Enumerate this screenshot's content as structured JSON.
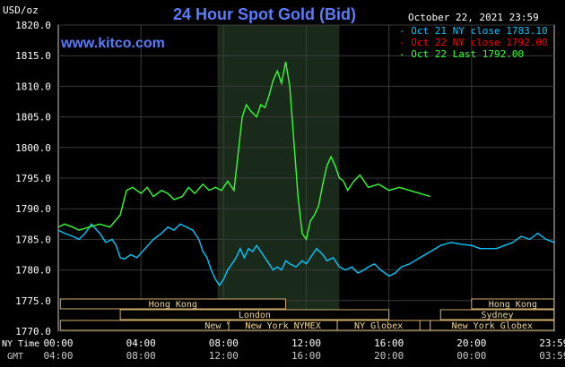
{
  "chart_data": {
    "type": "line",
    "title": "24 Hour Spot Gold (Bid)",
    "website": "www.kitco.com",
    "ylabel": "USD/oz",
    "datetime": "October 22, 2021 23:59",
    "ylim": [
      1770,
      1820
    ],
    "yticks": [
      "1770.0",
      "1775.0",
      "1780.0",
      "1785.0",
      "1790.0",
      "1795.0",
      "1800.0",
      "1805.0",
      "1810.0",
      "1815.0",
      "1820.0"
    ],
    "grid": true,
    "legend_position": "top-right",
    "legend": [
      {
        "label": "- Oct 21 NY close 1783.10",
        "color": "#00c8ff"
      },
      {
        "label": "- Oct 22 NY close 1792.00",
        "color": "#ff0000"
      },
      {
        "label": "- Oct 22 Last 1792.00",
        "color": "#33ff33"
      }
    ],
    "xaxis": {
      "ny_label": "NY Time",
      "gmt_label": "GMT",
      "ny_ticks": [
        "00:00",
        "04:00",
        "08:00",
        "12:00",
        "16:00",
        "20:00",
        "23:59"
      ],
      "gmt_ticks": [
        "04:00",
        "08:00",
        "12:00",
        "16:00",
        "20:00",
        "00:00",
        "03:59"
      ]
    },
    "sessions": [
      {
        "label": "Hong Kong",
        "start": 0.1,
        "end": 11.0
      },
      {
        "label": "London",
        "start": 3.0,
        "end": 16.0
      },
      {
        "label": "New York Globex",
        "start": 0.1,
        "end": 18.0
      },
      {
        "label": "New York NYMEX",
        "start": 8.25,
        "end": 13.5
      },
      {
        "label": "NY Globex",
        "start": 13.5,
        "end": 17.5
      },
      {
        "label": "Hong Kong",
        "start": 20.0,
        "end": 23.99
      },
      {
        "label": "Sydney",
        "start": 18.5,
        "end": 23.99
      },
      {
        "label": "New York Globex",
        "start": 18.0,
        "end": 23.99
      }
    ],
    "highlight_hours": [
      7.7,
      13.6
    ],
    "series": [
      {
        "name": "Oct 21 NY close 1783.10",
        "color": "#00c8ff",
        "x": [
          0,
          0.3,
          0.7,
          1.0,
          1.3,
          1.6,
          2.0,
          2.3,
          2.6,
          2.8,
          3.0,
          3.2,
          3.5,
          3.8,
          4.2,
          4.6,
          5.0,
          5.3,
          5.6,
          5.9,
          6.2,
          6.5,
          6.8,
          7.0,
          7.2,
          7.4,
          7.6,
          7.8,
          8.0,
          8.2,
          8.4,
          8.6,
          8.8,
          9.0,
          9.2,
          9.4,
          9.6,
          9.8,
          10.0,
          10.2,
          10.4,
          10.6,
          10.8,
          11.0,
          11.2,
          11.5,
          11.8,
          12.0,
          12.2,
          12.5,
          12.8,
          13.0,
          13.3,
          13.6,
          13.9,
          14.2,
          14.5,
          14.8,
          15.0,
          15.3,
          15.6,
          16.0,
          16.3,
          16.6,
          17.0,
          17.5,
          18.0,
          18.5,
          19.0,
          19.5,
          20.0,
          20.4,
          20.8,
          21.2,
          21.6,
          22.0,
          22.4,
          22.8,
          23.2,
          23.6,
          23.99
        ],
        "y": [
          1786.5,
          1786,
          1785.5,
          1785,
          1786,
          1787.5,
          1786,
          1784.5,
          1785,
          1784,
          1782,
          1781.8,
          1782.5,
          1782,
          1783.5,
          1785,
          1786,
          1787,
          1786.5,
          1787.5,
          1787,
          1786.5,
          1785,
          1783,
          1782,
          1780,
          1778.5,
          1777.5,
          1778.5,
          1780,
          1781,
          1782,
          1783.5,
          1782,
          1783.5,
          1783,
          1784,
          1783,
          1782,
          1781,
          1780,
          1780.5,
          1780,
          1781.5,
          1781,
          1780.5,
          1781.5,
          1781,
          1782,
          1783.5,
          1782.5,
          1781.5,
          1782,
          1780.5,
          1780,
          1780.5,
          1779.5,
          1780,
          1780.5,
          1781,
          1780,
          1779,
          1779.5,
          1780.5,
          1781,
          1782,
          1783,
          1784,
          1784.5,
          1784.2,
          1784,
          1783.5,
          1783.5,
          1783.5,
          1784,
          1784.5,
          1785.5,
          1785,
          1786,
          1785,
          1784.5
        ]
      },
      {
        "name": "Oct 22 Last 1792.00",
        "color": "#33ff33",
        "x": [
          0,
          0.3,
          0.7,
          1.0,
          1.5,
          2.0,
          2.5,
          3.0,
          3.3,
          3.6,
          4.0,
          4.3,
          4.6,
          5.0,
          5.3,
          5.6,
          6.0,
          6.3,
          6.6,
          7.0,
          7.3,
          7.6,
          7.9,
          8.2,
          8.5,
          8.7,
          8.9,
          9.1,
          9.3,
          9.6,
          9.8,
          10.0,
          10.2,
          10.4,
          10.6,
          10.8,
          11.0,
          11.2,
          11.4,
          11.6,
          11.8,
          12.0,
          12.2,
          12.4,
          12.6,
          12.8,
          13.0,
          13.2,
          13.4,
          13.6,
          13.8,
          14.0,
          14.3,
          14.6,
          15.0,
          15.5,
          16.0,
          16.5,
          17.0,
          17.5,
          18.0
        ],
        "y": [
          1787,
          1787.5,
          1787,
          1786.5,
          1787,
          1787.5,
          1787,
          1789,
          1793,
          1793.5,
          1792.5,
          1793.5,
          1792,
          1793,
          1792.5,
          1791.5,
          1792,
          1793.5,
          1792.5,
          1794,
          1793,
          1793.5,
          1793,
          1794.5,
          1793,
          1799,
          1805,
          1807,
          1806,
          1805,
          1807,
          1806.5,
          1808.5,
          1811,
          1812.5,
          1810.5,
          1814,
          1810,
          1801,
          1792,
          1786,
          1785,
          1788,
          1789,
          1790.5,
          1794,
          1797,
          1798.5,
          1797,
          1795,
          1794.5,
          1793,
          1794.5,
          1795.5,
          1793.5,
          1794,
          1793,
          1793.5,
          1793,
          1792.5,
          1792
        ]
      }
    ]
  }
}
